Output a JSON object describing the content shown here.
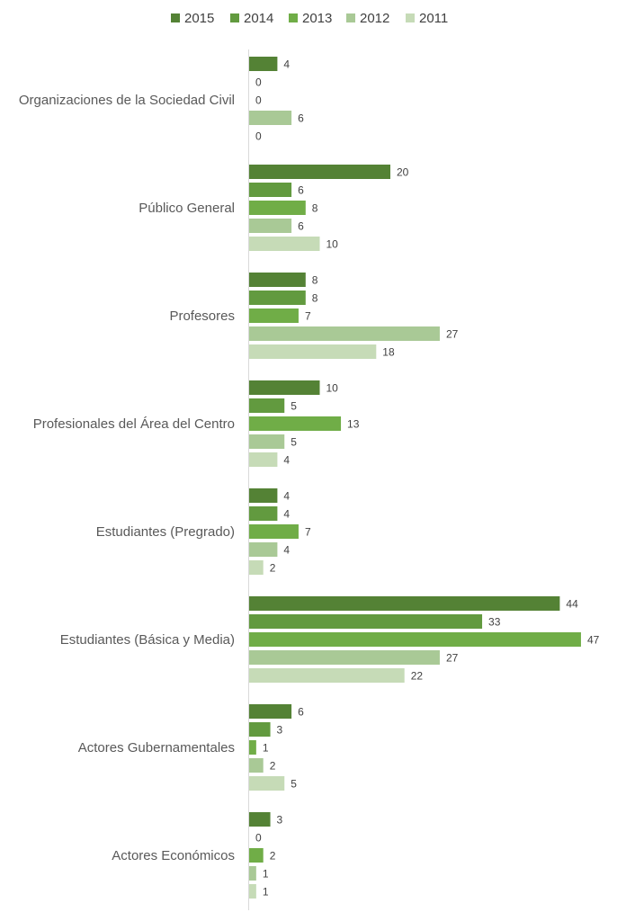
{
  "chart_data": {
    "type": "bar",
    "orientation": "horizontal",
    "title": "",
    "xlabel": "",
    "ylabel": "",
    "legend_position": "top",
    "grid": false,
    "categories": [
      "Organizaciones de la Sociedad Civil",
      "Público General",
      "Profesores",
      "Profesionales del Área del Centro",
      "Estudiantes (Pregrado)",
      "Estudiantes (Básica y Media)",
      "Actores Gubernamentales",
      "Actores Económicos"
    ],
    "series": [
      {
        "name": "2015",
        "color": "#548235",
        "values": [
          4,
          20,
          8,
          10,
          4,
          44,
          6,
          3
        ]
      },
      {
        "name": "2014",
        "color": "#629a3f",
        "values": [
          0,
          6,
          8,
          5,
          4,
          33,
          3,
          0
        ]
      },
      {
        "name": "2013",
        "color": "#70ad47",
        "values": [
          0,
          8,
          7,
          13,
          7,
          47,
          1,
          2
        ]
      },
      {
        "name": "2012",
        "color": "#a9c996",
        "values": [
          6,
          6,
          27,
          5,
          4,
          27,
          2,
          1
        ]
      },
      {
        "name": "2011",
        "color": "#c6dbb7",
        "values": [
          0,
          10,
          18,
          4,
          2,
          22,
          5,
          1
        ]
      }
    ]
  }
}
